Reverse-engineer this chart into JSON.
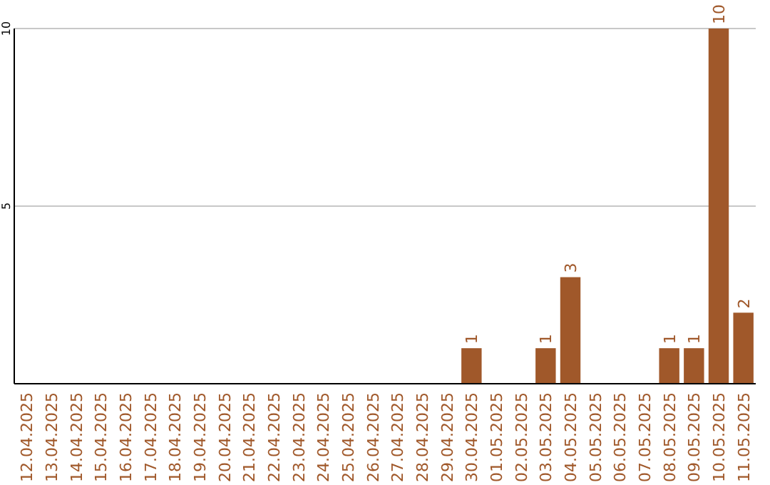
{
  "chart_data": {
    "type": "bar",
    "categories": [
      "12.04.2025",
      "13.04.2025",
      "14.04.2025",
      "15.04.2025",
      "16.04.2025",
      "17.04.2025",
      "18.04.2025",
      "19.04.2025",
      "20.04.2025",
      "21.04.2025",
      "22.04.2025",
      "23.04.2025",
      "24.04.2025",
      "25.04.2025",
      "26.04.2025",
      "27.04.2025",
      "28.04.2025",
      "29.04.2025",
      "30.04.2025",
      "01.05.2025",
      "02.05.2025",
      "03.05.2025",
      "04.05.2025",
      "05.05.2025",
      "06.05.2025",
      "07.05.2025",
      "08.05.2025",
      "09.05.2025",
      "10.05.2025",
      "11.05.2025"
    ],
    "values": [
      0,
      0,
      0,
      0,
      0,
      0,
      0,
      0,
      0,
      0,
      0,
      0,
      0,
      0,
      0,
      0,
      0,
      0,
      1,
      0,
      0,
      1,
      3,
      0,
      0,
      0,
      1,
      1,
      10,
      2
    ],
    "value_labels": [
      null,
      null,
      null,
      null,
      null,
      null,
      null,
      null,
      null,
      null,
      null,
      null,
      null,
      null,
      null,
      null,
      null,
      null,
      "1",
      null,
      null,
      "1",
      "3",
      null,
      null,
      null,
      "1",
      "1",
      "10",
      "2"
    ],
    "color": "#a0582a",
    "ylim": [
      0,
      10
    ],
    "yticks": [
      5,
      10
    ],
    "grid": "y"
  }
}
